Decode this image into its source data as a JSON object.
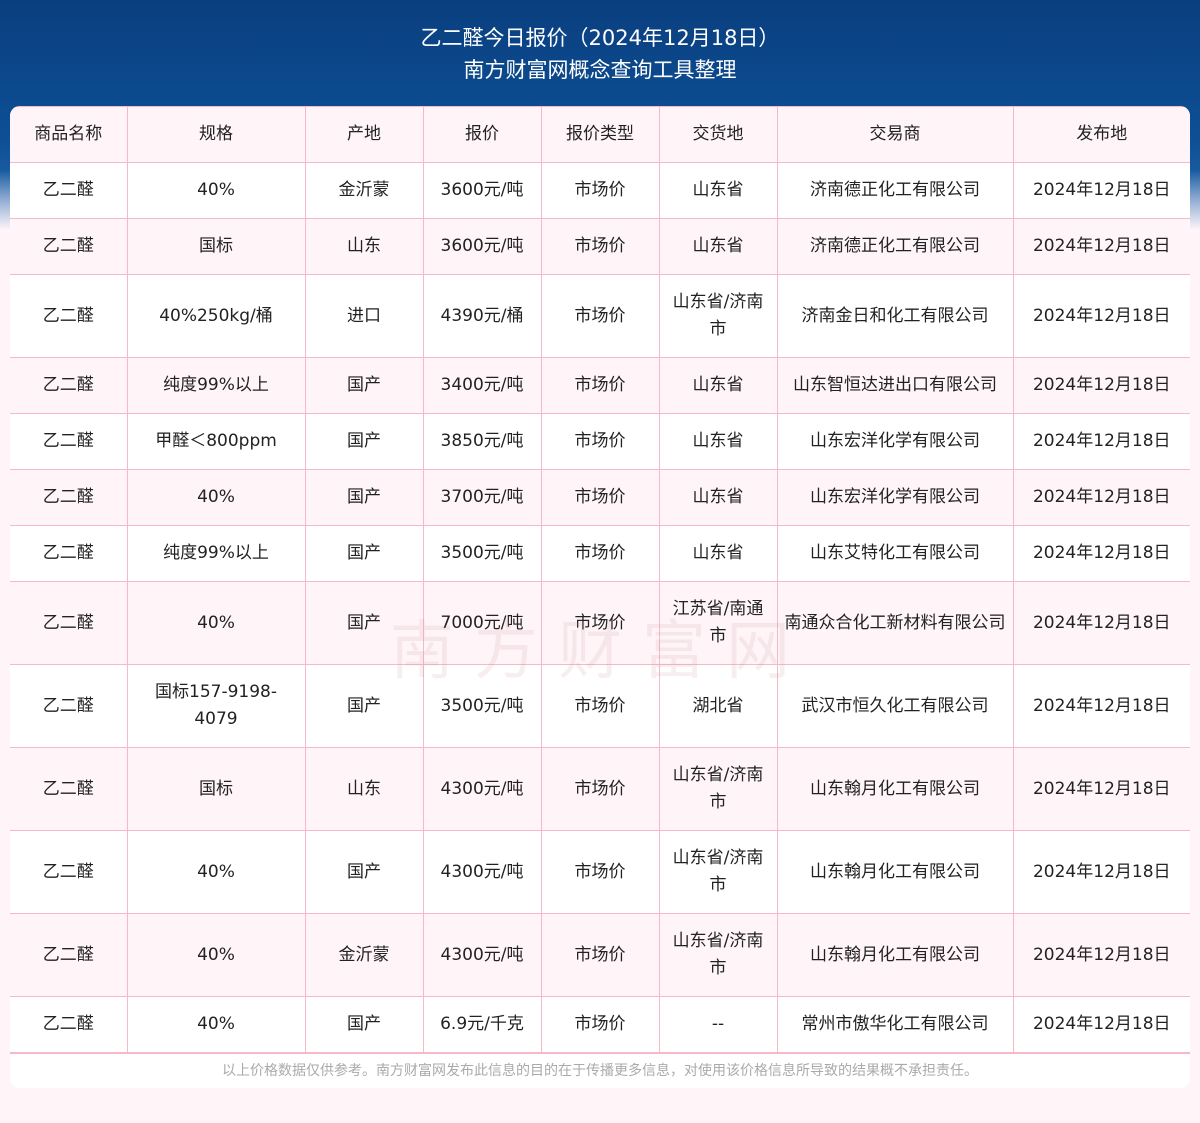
{
  "header": {
    "title": "乙二醛今日报价（2024年12月18日）",
    "subtitle": "南方财富网概念查询工具整理"
  },
  "table": {
    "columns": [
      "商品名称",
      "规格",
      "产地",
      "报价",
      "报价类型",
      "交货地",
      "交易商",
      "发布地"
    ],
    "rows": [
      [
        "乙二醛",
        "40%",
        "金沂蒙",
        "3600元/吨",
        "市场价",
        "山东省",
        "济南德正化工有限公司",
        "2024年12月18日"
      ],
      [
        "乙二醛",
        "国标",
        "山东",
        "3600元/吨",
        "市场价",
        "山东省",
        "济南德正化工有限公司",
        "2024年12月18日"
      ],
      [
        "乙二醛",
        "40%250kg/桶",
        "进口",
        "4390元/桶",
        "市场价",
        "山东省/济南市",
        "济南金日和化工有限公司",
        "2024年12月18日"
      ],
      [
        "乙二醛",
        "纯度99%以上",
        "国产",
        "3400元/吨",
        "市场价",
        "山东省",
        "山东智恒达进出口有限公司",
        "2024年12月18日"
      ],
      [
        "乙二醛",
        "甲醛＜800ppm",
        "国产",
        "3850元/吨",
        "市场价",
        "山东省",
        "山东宏洋化学有限公司",
        "2024年12月18日"
      ],
      [
        "乙二醛",
        "40%",
        "国产",
        "3700元/吨",
        "市场价",
        "山东省",
        "山东宏洋化学有限公司",
        "2024年12月18日"
      ],
      [
        "乙二醛",
        "纯度99%以上",
        "国产",
        "3500元/吨",
        "市场价",
        "山东省",
        "山东艾特化工有限公司",
        "2024年12月18日"
      ],
      [
        "乙二醛",
        "40%",
        "国产",
        "7000元/吨",
        "市场价",
        "江苏省/南通市",
        "南通众合化工新材料有限公司",
        "2024年12月18日"
      ],
      [
        "乙二醛",
        "国标157-9198-4079",
        "国产",
        "3500元/吨",
        "市场价",
        "湖北省",
        "武汉市恒久化工有限公司",
        "2024年12月18日"
      ],
      [
        "乙二醛",
        "国标",
        "山东",
        "4300元/吨",
        "市场价",
        "山东省/济南市",
        "山东翰月化工有限公司",
        "2024年12月18日"
      ],
      [
        "乙二醛",
        "40%",
        "国产",
        "4300元/吨",
        "市场价",
        "山东省/济南市",
        "山东翰月化工有限公司",
        "2024年12月18日"
      ],
      [
        "乙二醛",
        "40%",
        "金沂蒙",
        "4300元/吨",
        "市场价",
        "山东省/济南市",
        "山东翰月化工有限公司",
        "2024年12月18日"
      ],
      [
        "乙二醛",
        "40%",
        "国产",
        "6.9元/千克",
        "市场价",
        "--",
        "常州市傲华化工有限公司",
        "2024年12月18日"
      ]
    ]
  },
  "footer": {
    "disclaimer": "以上价格数据仅供参考。南方财富网发布此信息的目的在于传播更多信息，对使用该价格信息所导致的结果概不承担责任。"
  },
  "watermark": "南方财富网 southmoney.com",
  "colors": {
    "header_bg": "#0d4f95",
    "border": "#f7b8c8",
    "row_alt": "#fff5f8"
  }
}
